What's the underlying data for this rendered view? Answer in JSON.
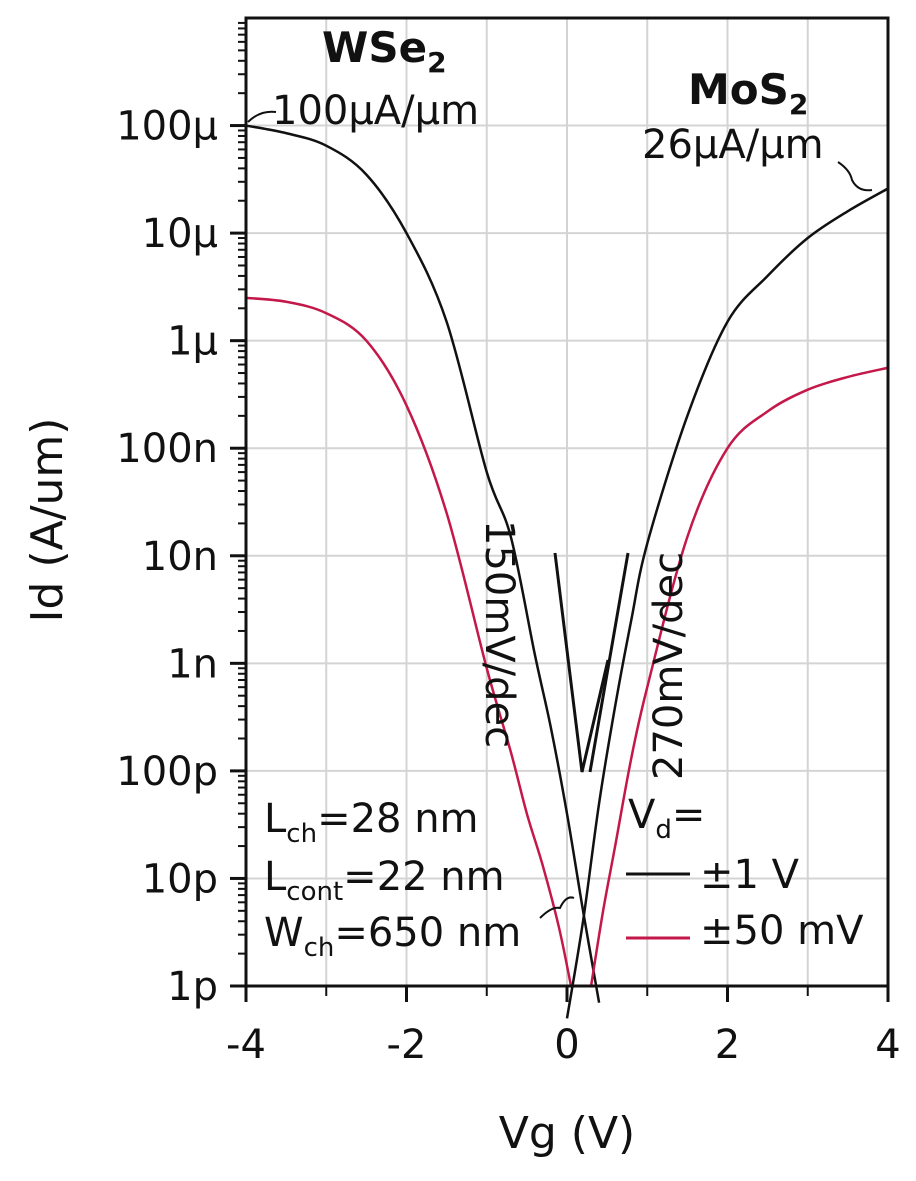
{
  "chart_data": {
    "type": "line",
    "xlabel": "Vg (V)",
    "ylabel": "Id (A/um)",
    "xlim": [
      -4,
      4
    ],
    "ylim": [
      1e-12,
      0.001
    ],
    "y_scale": "log",
    "grid": true,
    "x_ticks": [
      {
        "value": -4,
        "label": "-4"
      },
      {
        "value": -2,
        "label": "-2"
      },
      {
        "value": 0,
        "label": "0"
      },
      {
        "value": 2,
        "label": "2"
      },
      {
        "value": 4,
        "label": "4"
      }
    ],
    "y_ticks": [
      {
        "value": 1e-12,
        "label": "1p"
      },
      {
        "value": 1e-11,
        "label": "10p"
      },
      {
        "value": 1e-10,
        "label": "100p"
      },
      {
        "value": 1e-09,
        "label": "1n"
      },
      {
        "value": 1e-08,
        "label": "10n"
      },
      {
        "value": 1e-07,
        "label": "100n"
      },
      {
        "value": 1e-06,
        "label": "1μ"
      },
      {
        "value": 1e-05,
        "label": "10μ"
      },
      {
        "value": 0.0001,
        "label": "100μ"
      }
    ],
    "series": [
      {
        "color": "#111111",
        "x": [
          -4,
          -3.5,
          -3,
          -2.5,
          -2,
          -1.5,
          -1,
          -0.7,
          -0.4,
          -0.2,
          0,
          0.2,
          0.4
        ],
        "y": [
          0.0001,
          8.5e-05,
          6.5e-05,
          3.5e-05,
          1e-05,
          1.5e-06,
          6e-08,
          1.5e-08,
          1.2e-09,
          2.5e-10,
          4e-11,
          5e-12,
          7e-13
        ]
      },
      {
        "color": "#111111",
        "x": [
          0,
          0.2,
          0.4,
          0.6,
          0.8,
          1,
          1.5,
          2,
          2.5,
          3,
          3.5,
          4
        ],
        "y": [
          5e-13,
          4e-12,
          5e-11,
          4e-10,
          2.5e-09,
          1.3e-08,
          2e-07,
          1.5e-06,
          4e-06,
          9e-06,
          1.6e-05,
          2.6e-05
        ]
      },
      {
        "color": "#c4184a",
        "x": [
          -4,
          -3.5,
          -3,
          -2.5,
          -2,
          -1.5,
          -1,
          -0.7,
          -0.5,
          -0.3,
          -0.1,
          0.05
        ],
        "y": [
          2.5e-06,
          2.3e-06,
          1.8e-06,
          1e-06,
          2.5e-07,
          2.5e-08,
          9e-10,
          1.5e-10,
          4e-11,
          1.3e-11,
          3.5e-12,
          1e-12
        ]
      },
      {
        "color": "#c4184a",
        "x": [
          0.3,
          0.45,
          0.6,
          0.8,
          1,
          1.5,
          2,
          2.5,
          3,
          3.5,
          4
        ],
        "y": [
          1e-12,
          5e-12,
          2e-11,
          1.3e-10,
          6e-10,
          1.5e-08,
          1e-07,
          2.2e-07,
          3.5e-07,
          4.6e-07,
          5.6e-07
        ]
      }
    ],
    "annotations": {
      "wse2_name": "WSe",
      "wse2_sub": "2",
      "wse2_current": "100μA/μm",
      "mos2_name": "MoS",
      "mos2_sub": "2",
      "mos2_current": "26μA/μm",
      "slope_left": "150mV/dec",
      "slope_right": "270mV/dec",
      "lch_main": "L",
      "lch_sub": "ch",
      "lch_val": "=28 nm",
      "lcont_main": "L",
      "lcont_sub": "cont",
      "lcont_val": "=22 nm",
      "wch_main": "W",
      "wch_sub": "ch",
      "wch_val": "=650 nm",
      "vd_main": "V",
      "vd_sub": "d",
      "vd_val": "=",
      "legend_1v": "±1 V",
      "legend_50mv": "±50 mV"
    }
  }
}
